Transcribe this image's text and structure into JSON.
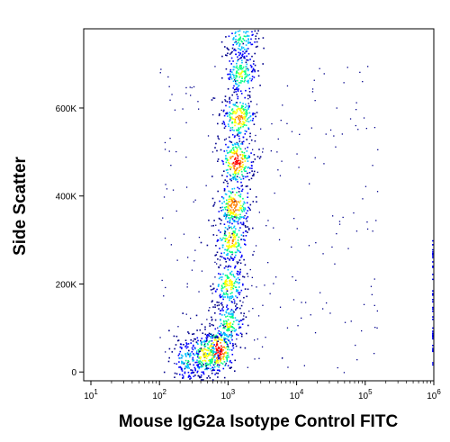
{
  "chart_data": {
    "type": "scatter",
    "style": "density",
    "xlabel": "Mouse IgG2a Isotype Control FITC",
    "ylabel": "Side Scatter",
    "x_scale": "log",
    "xlim": [
      10,
      1000000
    ],
    "ylim": [
      -20000,
      780000
    ],
    "x_ticks": [
      {
        "value": 10,
        "base": "10",
        "exp": "1"
      },
      {
        "value": 100,
        "base": "10",
        "exp": "2"
      },
      {
        "value": 1000,
        "base": "10",
        "exp": "3"
      },
      {
        "value": 10000,
        "base": "10",
        "exp": "4"
      },
      {
        "value": 100000,
        "base": "10",
        "exp": "5"
      },
      {
        "value": 1000000,
        "base": "10",
        "exp": "6"
      }
    ],
    "y_ticks": [
      {
        "value": 0,
        "label": "0"
      },
      {
        "value": 200000,
        "label": "200K"
      },
      {
        "value": 400000,
        "label": "400K"
      },
      {
        "value": 600000,
        "label": "600K"
      }
    ],
    "populations": [
      {
        "x": 700,
        "y": 50000,
        "density": 1.0
      },
      {
        "x": 450,
        "y": 40000,
        "density": 0.7
      },
      {
        "x": 250,
        "y": 28000,
        "density": 0.45
      },
      {
        "x": 1000,
        "y": 110000,
        "density": 0.6
      },
      {
        "x": 1000,
        "y": 200000,
        "density": 0.65
      },
      {
        "x": 1100,
        "y": 300000,
        "density": 0.75
      },
      {
        "x": 1200,
        "y": 380000,
        "density": 0.85
      },
      {
        "x": 1300,
        "y": 480000,
        "density": 0.95
      },
      {
        "x": 1400,
        "y": 580000,
        "density": 0.8
      },
      {
        "x": 1500,
        "y": 680000,
        "density": 0.6
      },
      {
        "x": 1550,
        "y": 760000,
        "density": 0.5
      }
    ],
    "colormap": [
      "#00008b",
      "#0000ff",
      "#00c0ff",
      "#00ff80",
      "#ffff00",
      "#ff8000",
      "#ff0000"
    ]
  }
}
